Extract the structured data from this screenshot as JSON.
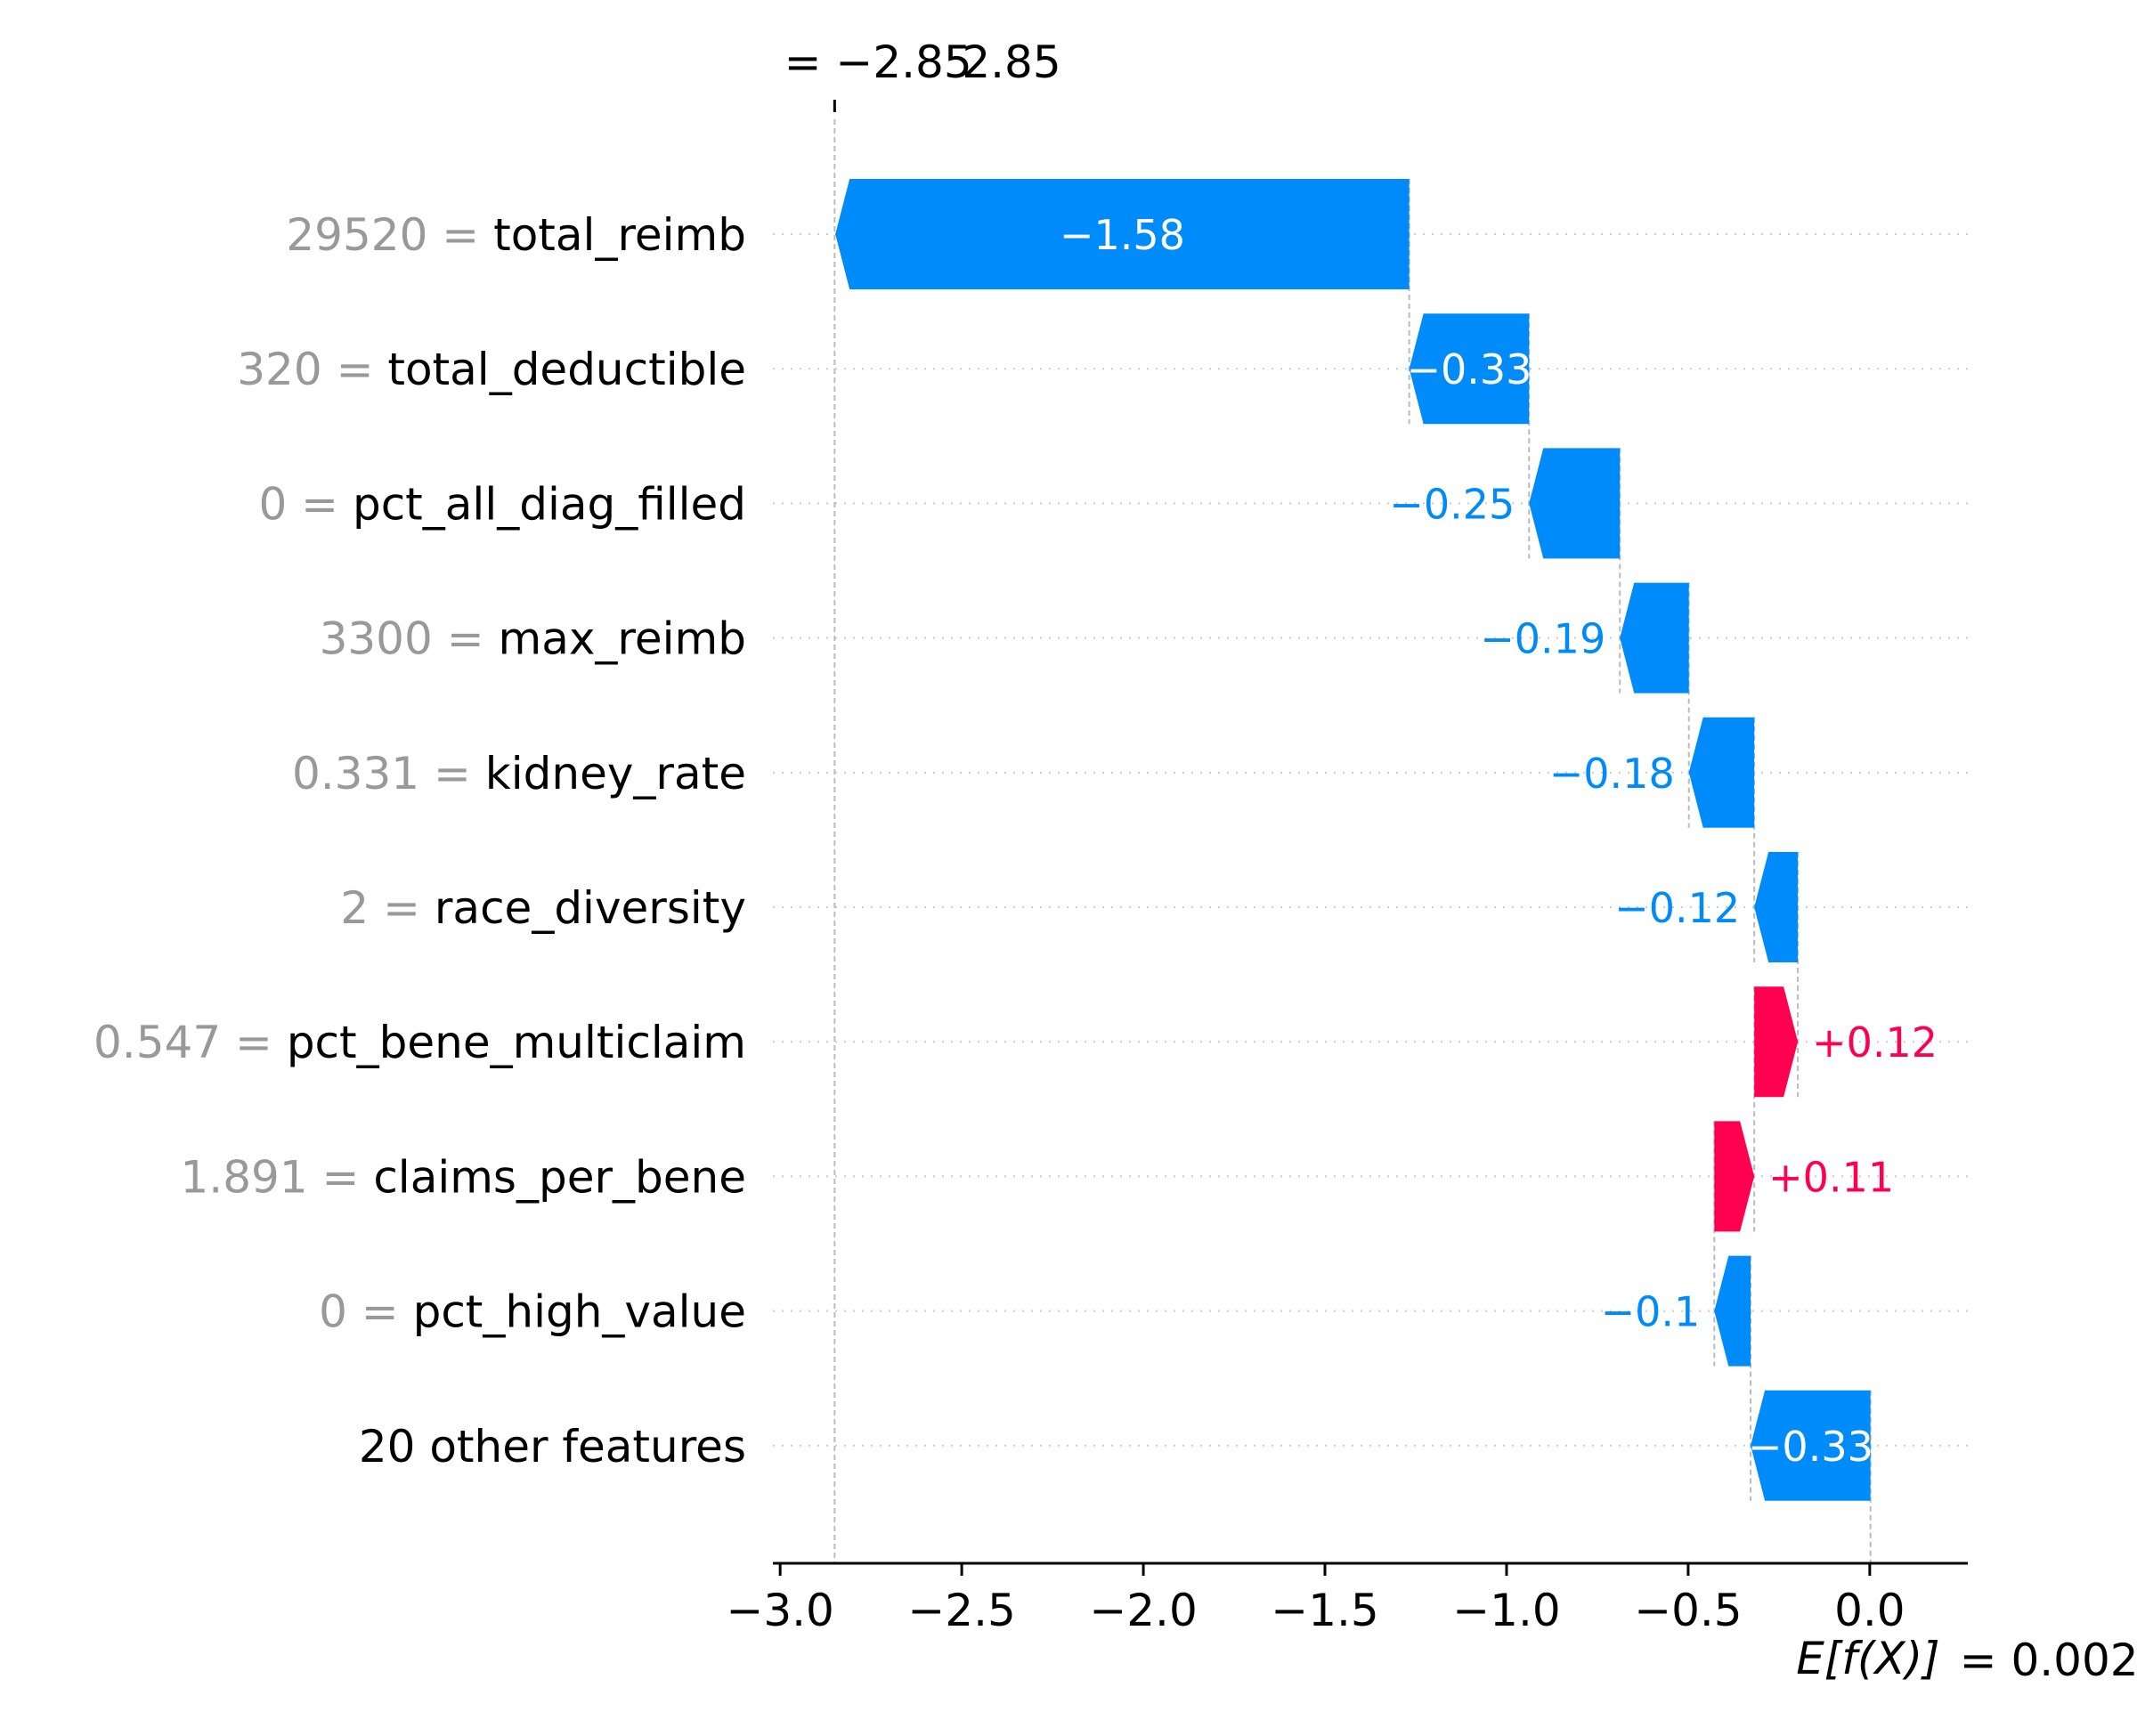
{
  "chart_data": {
    "type": "bar",
    "subtype": "shap-waterfall",
    "features": [
      {
        "value": "29520",
        "name": "total_reimb",
        "contribution": -1.58,
        "label": "−1.58",
        "label_inside": true
      },
      {
        "value": "320",
        "name": "total_deductible",
        "contribution": -0.33,
        "label": "−0.33",
        "label_inside": true
      },
      {
        "value": "0",
        "name": "pct_all_diag_filled",
        "contribution": -0.25,
        "label": "−0.25",
        "label_inside": false
      },
      {
        "value": "3300",
        "name": "max_reimb",
        "contribution": -0.19,
        "label": "−0.19",
        "label_inside": false
      },
      {
        "value": "0.331",
        "name": "kidney_rate",
        "contribution": -0.18,
        "label": "−0.18",
        "label_inside": false
      },
      {
        "value": "2",
        "name": "race_diversity",
        "contribution": -0.12,
        "label": "−0.12",
        "label_inside": false
      },
      {
        "value": "0.547",
        "name": "pct_bene_multiclaim",
        "contribution": 0.12,
        "label": "+0.12",
        "label_inside": false
      },
      {
        "value": "1.891",
        "name": "claims_per_bene",
        "contribution": 0.11,
        "label": "+0.11",
        "label_inside": false
      },
      {
        "value": "0",
        "name": "pct_high_value",
        "contribution": -0.1,
        "label": "−0.1",
        "label_inside": false
      },
      {
        "value": "",
        "name": "20 other features",
        "contribution": -0.33,
        "label": "−0.33",
        "label_inside": true
      }
    ],
    "base_value": 0.002,
    "base_value_label": "E[f(X)]",
    "base_value_text": "= 0.002",
    "output_value": -2.85,
    "output_prefix": "= −",
    "output_number": "2.85",
    "output_text": "2.85",
    "xlim": [
      -3.02,
      0.27
    ],
    "xticks": [
      -3.0,
      -2.5,
      -2.0,
      -1.5,
      -1.0,
      -0.5,
      0.0
    ],
    "xtick_labels": [
      "−3.0",
      "−2.5",
      "−2.0",
      "−1.5",
      "−1.0",
      "−0.5",
      "0.0"
    ],
    "colors": {
      "negative": "#008bfb",
      "positive": "#ff0051",
      "value_text": "#999999",
      "name_text": "#000000",
      "grid": "#cccccc",
      "guide": "#bbbbbb"
    }
  }
}
